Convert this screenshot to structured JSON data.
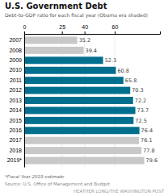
{
  "chart_data": {
    "type": "bar",
    "orientation": "horizontal",
    "title": "U.S. Government Debt",
    "subtitle": "Debt-to-GDP ratio for each fiscal year (Obama era shaded)",
    "categories": [
      "2007",
      "2008",
      "2009",
      "2010",
      "2011",
      "2012",
      "2013",
      "2014",
      "2015",
      "2016",
      "2017",
      "2018",
      "2019*"
    ],
    "values": [
      35.2,
      39.4,
      52.3,
      60.8,
      65.8,
      70.3,
      72.2,
      73.7,
      72.5,
      76.4,
      76.1,
      77.8,
      79.6
    ],
    "colors": [
      "#c8c8c8",
      "#c8c8c8",
      "#006f8e",
      "#006f8e",
      "#006f8e",
      "#006f8e",
      "#006f8e",
      "#006f8e",
      "#006f8e",
      "#006f8e",
      "#c8c8c8",
      "#c8c8c8",
      "#c8c8c8"
    ],
    "xlim": [
      0,
      90
    ],
    "xticks": [
      0,
      25,
      40,
      60
    ],
    "grid": true,
    "data_labels": true,
    "annotations": [
      "*Fiscal Year 2019 estimate",
      "Source: U.S. Office of Management and Budget",
      "HEATHER LONG/THE WASHINGTON POST"
    ]
  }
}
